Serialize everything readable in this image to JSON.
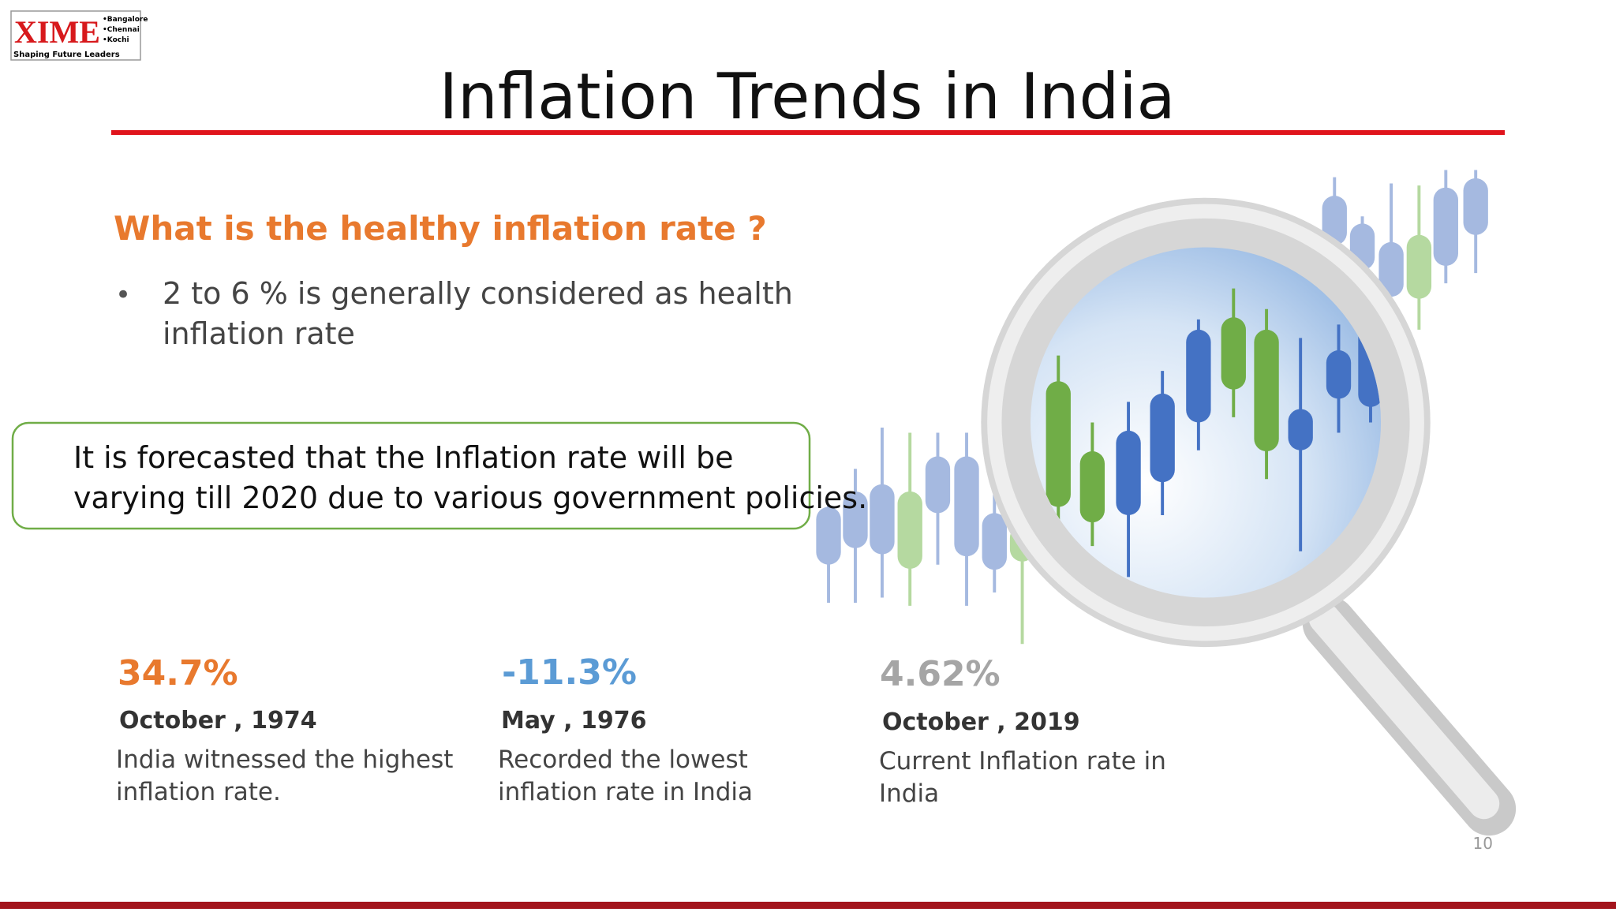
{
  "logo": {
    "name": "XIME",
    "campuses": [
      "•Bangalore",
      "•Chennai",
      "•Kochi"
    ],
    "tagline": "Shaping Future Leaders"
  },
  "title": "Inflation Trends in India",
  "question": "What is the healthy inflation rate ?",
  "bullet": [
    "2 to 6 % is generally considered as health",
    "inflation rate"
  ],
  "callout": [
    "It is forecasted that the Inflation rate will be",
    "varying till 2020 due to various government policies."
  ],
  "stats": [
    {
      "value": "34.7%",
      "date": "October , 1974",
      "description": [
        "India witnessed the highest",
        "inflation rate."
      ]
    },
    {
      "value": "-11.3%",
      "date": "May , 1976",
      "description": [
        "Recorded the lowest",
        "inflation rate in India"
      ]
    },
    {
      "value": "4.62%",
      "date": "October , 2019",
      "description": [
        "Current Inflation rate in",
        "India"
      ]
    }
  ],
  "page_number": "10"
}
